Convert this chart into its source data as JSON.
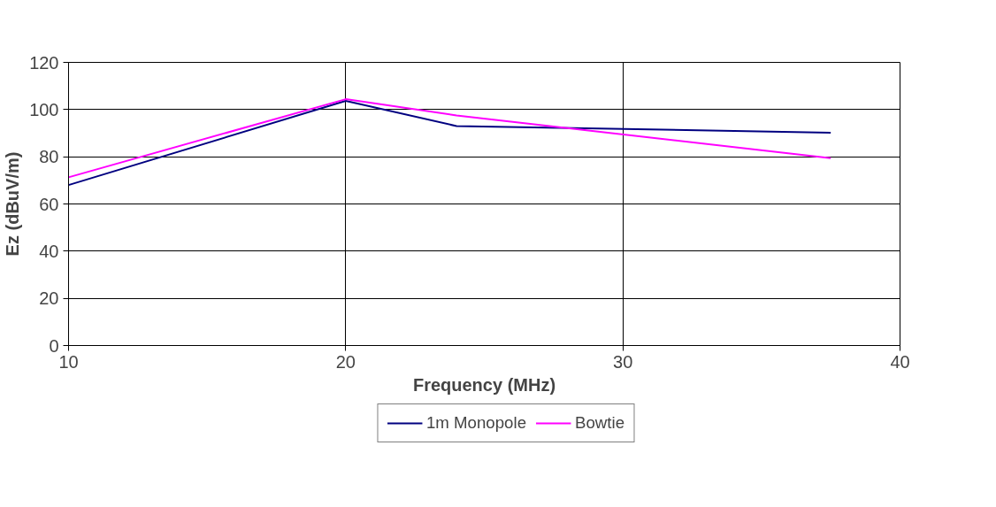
{
  "chart_data": {
    "type": "line",
    "xlabel": "Frequency (MHz)",
    "ylabel": "Ez (dBuV/m)",
    "x": [
      10,
      20,
      24,
      37.5
    ],
    "series": [
      {
        "name": "1m Monopole",
        "color": "#000080",
        "values": [
          68,
          103.7,
          93,
          90.2
        ]
      },
      {
        "name": "Bowtie",
        "color": "#ff00ff",
        "values": [
          71.3,
          104.4,
          97.5,
          79.4
        ]
      }
    ],
    "xlim": [
      10,
      40
    ],
    "xticks": [
      10,
      20,
      30,
      40
    ],
    "ylim": [
      0,
      120
    ],
    "yticks": [
      0,
      20,
      40,
      60,
      80,
      100,
      120
    ],
    "grid": true,
    "legend": "bottom",
    "marker": "none",
    "line_style": "solid"
  }
}
